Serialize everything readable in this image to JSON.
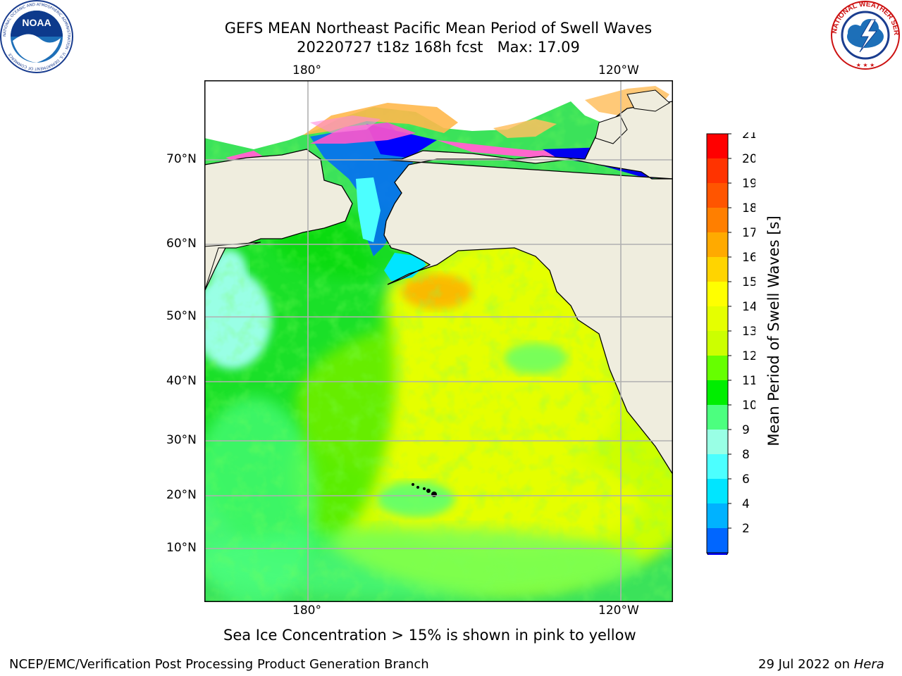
{
  "title": {
    "line1": "GEFS MEAN Northeast Pacific Mean Period of Swell Waves",
    "line2": "20220727 t18z 168h fcst   Max: 17.09"
  },
  "logos": {
    "noaa_text": "NOAA",
    "noaa_ring": "NATIONAL OCEANIC AND ATMOSPHERIC ADMINISTRATION · U.S. DEPARTMENT OF COMMERCE",
    "nws_ring": "NATIONAL WEATHER SERVICE"
  },
  "map": {
    "lon_labels_top": [
      "180°",
      "120°W"
    ],
    "lon_labels_bottom": [
      "180°",
      "120°W"
    ],
    "lat_labels": [
      "70°N",
      "60°N",
      "50°N",
      "40°N",
      "30°N",
      "20°N",
      "10°N"
    ],
    "land_color": "#efedde",
    "grid_color": "#b0b0b0"
  },
  "colorbar": {
    "label": "Mean Period of Swell Waves [s]",
    "ticks": [
      "21",
      "20",
      "19",
      "18",
      "17",
      "16",
      "15",
      "14",
      "13",
      "12",
      "11",
      "10",
      "9",
      "8",
      "6",
      "4",
      "2"
    ],
    "colors_top_to_bottom": [
      "#ff0000",
      "#ff3300",
      "#ff5500",
      "#ff7f00",
      "#ffaa00",
      "#ffd400",
      "#ffff00",
      "#e5ff00",
      "#ccff00",
      "#66ff00",
      "#00ee00",
      "#4cff7f",
      "#99ffe5",
      "#4cffff",
      "#00e5ff",
      "#00b2ff",
      "#0066ff"
    ],
    "extend_color": "#0000ff"
  },
  "caption": "Sea Ice Concentration > 15% is shown in pink to yellow",
  "footer": {
    "left": "NCEP/EMC/Verification Post Processing Product Generation Branch",
    "right_prefix": "29 Jul 2022 on ",
    "right_host": "Hera"
  }
}
